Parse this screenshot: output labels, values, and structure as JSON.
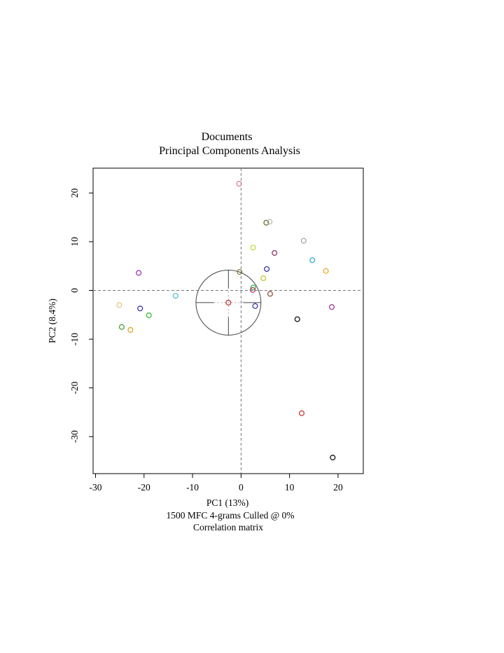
{
  "chart_data": {
    "type": "scatter",
    "title": "Documents",
    "subtitle": "Principal Components Analysis",
    "xlabel": "PC1 (13%)",
    "ylabel": "PC2 (8.4%)",
    "caption_lines": [
      "1500 MFC 4-grams Culled @ 0%",
      "Correlation matrix"
    ],
    "xlim": [
      -30.5,
      25.2
    ],
    "ylim": [
      -37.6,
      25.1
    ],
    "xticks": [
      -30,
      -20,
      -10,
      0,
      10,
      20
    ],
    "yticks": [
      20,
      10,
      0,
      -10,
      -20,
      -30
    ],
    "grid": false,
    "reference_lines": {
      "x": 0,
      "y": 0
    },
    "centroid_circle": {
      "center": [
        -2.6,
        -2.5
      ],
      "radius_x": 6.7
    },
    "points": [
      {
        "x": -0.4,
        "y": 21.9,
        "color": "#d6769a"
      },
      {
        "x": 5.2,
        "y": 13.9,
        "color": "#5a6e1e"
      },
      {
        "x": 5.9,
        "y": 14.1,
        "color": "#b8b8b8"
      },
      {
        "x": 12.9,
        "y": 10.2,
        "color": "#a0a0a0"
      },
      {
        "x": 2.5,
        "y": 8.8,
        "color": "#c6d22e"
      },
      {
        "x": 6.9,
        "y": 7.7,
        "color": "#8a2a63"
      },
      {
        "x": 14.7,
        "y": 6.2,
        "color": "#27a9d6"
      },
      {
        "x": 17.5,
        "y": 4.0,
        "color": "#e8a21c"
      },
      {
        "x": 5.3,
        "y": 4.4,
        "color": "#2a2aa0"
      },
      {
        "x": -0.3,
        "y": 3.8,
        "color": "#8a7a2a"
      },
      {
        "x": 4.6,
        "y": 2.5,
        "color": "#c2c21e"
      },
      {
        "x": -21.1,
        "y": 3.6,
        "color": "#9a2ab8"
      },
      {
        "x": 2.5,
        "y": 0.6,
        "color": "#2ab83a"
      },
      {
        "x": 2.4,
        "y": 0.1,
        "color": "#b8286a"
      },
      {
        "x": 6.0,
        "y": -0.7,
        "color": "#8a4a2a"
      },
      {
        "x": -13.5,
        "y": -1.1,
        "color": "#3ac6c6"
      },
      {
        "x": 2.9,
        "y": -3.2,
        "color": "#2a2ab8"
      },
      {
        "x": 18.7,
        "y": -3.4,
        "color": "#9a2a8a"
      },
      {
        "x": -2.6,
        "y": -2.5,
        "color": "#c2282a"
      },
      {
        "x": -25.1,
        "y": -3.0,
        "color": "#e8c27a"
      },
      {
        "x": -20.8,
        "y": -3.7,
        "color": "#2a2ab8"
      },
      {
        "x": -19.0,
        "y": -5.1,
        "color": "#2ab82a"
      },
      {
        "x": 11.6,
        "y": -5.9,
        "color": "#000000"
      },
      {
        "x": -24.6,
        "y": -7.5,
        "color": "#3a9a2a"
      },
      {
        "x": -22.8,
        "y": -8.1,
        "color": "#d6a21c"
      },
      {
        "x": 12.5,
        "y": -25.2,
        "color": "#c2282a"
      },
      {
        "x": 18.9,
        "y": -34.3,
        "color": "#000000"
      }
    ]
  }
}
